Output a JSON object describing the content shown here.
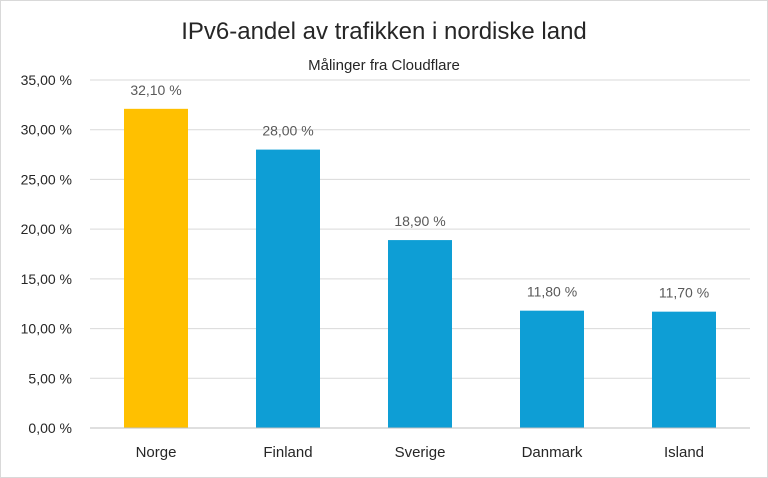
{
  "chart_data": {
    "type": "bar",
    "title": "IPv6-andel av trafikken i nordiske land",
    "subtitle": "Målinger fra Cloudflare",
    "categories": [
      "Norge",
      "Finland",
      "Sverige",
      "Danmark",
      "Island"
    ],
    "values": [
      32.1,
      28.0,
      18.9,
      11.8,
      11.7
    ],
    "data_labels": [
      "32,10 %",
      "28,00 %",
      "18,90 %",
      "11,80 %",
      "11,70 %"
    ],
    "ylim": [
      0,
      35
    ],
    "yticks": [
      0,
      5,
      10,
      15,
      20,
      25,
      30,
      35
    ],
    "ytick_labels": [
      "0,00 %",
      "5,00 %",
      "10,00 %",
      "15,00 %",
      "20,00 %",
      "25,00 %",
      "30,00 %",
      "35,00 %"
    ],
    "xlabel": "",
    "ylabel": "",
    "grid": true,
    "legend": "none",
    "colors": {
      "highlight": "#FFC000",
      "bar": "#0E9ED5",
      "grid": "#d9d9d9"
    },
    "highlight_index": 0
  }
}
